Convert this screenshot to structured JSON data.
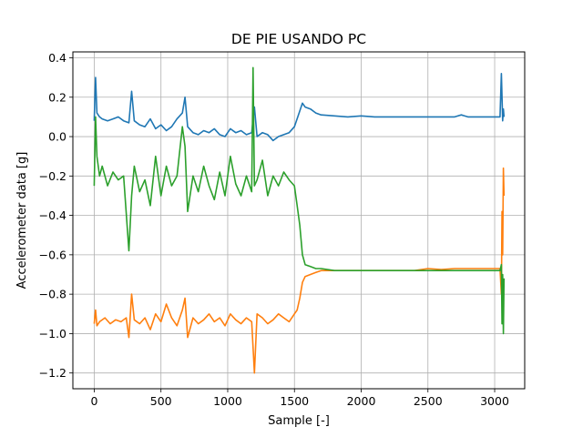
{
  "chart_data": {
    "type": "line",
    "title": "DE PIE USANDO PC",
    "xlabel": "Sample [-]",
    "ylabel": "Accelerometer data [g]",
    "xlim": [
      -160,
      3225
    ],
    "ylim": [
      -1.28,
      0.43
    ],
    "xticks": [
      0,
      500,
      1000,
      1500,
      2000,
      2500,
      3000
    ],
    "yticks": [
      -1.2,
      -1.0,
      -0.8,
      -0.6,
      -0.4,
      -0.2,
      0.0,
      0.2,
      0.4
    ],
    "grid": true,
    "legend": "none",
    "series": [
      {
        "color": "#1f77b4",
        "x": [
          0,
          10,
          20,
          40,
          60,
          100,
          140,
          180,
          220,
          260,
          280,
          300,
          340,
          380,
          420,
          460,
          500,
          540,
          580,
          620,
          660,
          680,
          700,
          740,
          780,
          820,
          860,
          900,
          940,
          980,
          1020,
          1060,
          1100,
          1140,
          1180,
          1200,
          1220,
          1260,
          1300,
          1340,
          1380,
          1420,
          1460,
          1500,
          1540,
          1560,
          1580,
          1620,
          1660,
          1700,
          1800,
          1900,
          2000,
          2100,
          2200,
          2300,
          2400,
          2500,
          2600,
          2700,
          2750,
          2800,
          2900,
          3000,
          3040,
          3050,
          3060,
          3065,
          3070
        ],
        "y": [
          0.08,
          0.3,
          0.12,
          0.1,
          0.09,
          0.08,
          0.09,
          0.1,
          0.08,
          0.07,
          0.23,
          0.08,
          0.06,
          0.05,
          0.09,
          0.04,
          0.06,
          0.03,
          0.05,
          0.09,
          0.12,
          0.2,
          0.05,
          0.02,
          0.01,
          0.03,
          0.02,
          0.04,
          0.01,
          0.0,
          0.04,
          0.02,
          0.03,
          0.01,
          0.02,
          0.15,
          0.0,
          0.02,
          0.01,
          -0.02,
          0.0,
          0.01,
          0.02,
          0.05,
          0.13,
          0.17,
          0.15,
          0.14,
          0.12,
          0.11,
          0.105,
          0.1,
          0.105,
          0.1,
          0.1,
          0.1,
          0.1,
          0.1,
          0.1,
          0.1,
          0.11,
          0.1,
          0.1,
          0.1,
          0.1,
          0.32,
          0.08,
          0.14,
          0.1
        ]
      },
      {
        "color": "#ff7f0e",
        "x": [
          0,
          10,
          20,
          40,
          80,
          120,
          160,
          200,
          240,
          260,
          280,
          300,
          340,
          380,
          420,
          460,
          500,
          540,
          580,
          620,
          660,
          680,
          700,
          740,
          780,
          820,
          860,
          900,
          940,
          980,
          1020,
          1060,
          1100,
          1140,
          1180,
          1200,
          1220,
          1260,
          1300,
          1340,
          1380,
          1420,
          1460,
          1500,
          1520,
          1540,
          1560,
          1580,
          1620,
          1660,
          1700,
          1800,
          1900,
          2000,
          2100,
          2200,
          2300,
          2400,
          2500,
          2600,
          2700,
          2800,
          2900,
          3000,
          3040,
          3050,
          3055,
          3060,
          3065,
          3070
        ],
        "y": [
          -0.95,
          -0.88,
          -0.96,
          -0.94,
          -0.92,
          -0.95,
          -0.93,
          -0.94,
          -0.92,
          -1.02,
          -0.8,
          -0.93,
          -0.95,
          -0.92,
          -0.98,
          -0.9,
          -0.94,
          -0.85,
          -0.92,
          -0.96,
          -0.88,
          -0.82,
          -1.02,
          -0.92,
          -0.95,
          -0.93,
          -0.9,
          -0.94,
          -0.92,
          -0.96,
          -0.9,
          -0.93,
          -0.95,
          -0.92,
          -0.94,
          -1.2,
          -0.9,
          -0.92,
          -0.95,
          -0.93,
          -0.9,
          -0.92,
          -0.94,
          -0.9,
          -0.88,
          -0.82,
          -0.74,
          -0.71,
          -0.7,
          -0.69,
          -0.68,
          -0.68,
          -0.68,
          -0.68,
          -0.68,
          -0.68,
          -0.68,
          -0.68,
          -0.67,
          -0.675,
          -0.67,
          -0.67,
          -0.67,
          -0.67,
          -0.67,
          -0.8,
          -0.38,
          -0.6,
          -0.16,
          -0.3
        ]
      },
      {
        "color": "#2ca02c",
        "x": [
          0,
          10,
          20,
          40,
          60,
          100,
          140,
          180,
          220,
          260,
          280,
          300,
          340,
          380,
          420,
          460,
          500,
          540,
          580,
          620,
          660,
          680,
          700,
          740,
          780,
          820,
          860,
          900,
          940,
          980,
          1020,
          1060,
          1100,
          1140,
          1180,
          1190,
          1200,
          1220,
          1260,
          1300,
          1340,
          1380,
          1420,
          1460,
          1500,
          1520,
          1540,
          1560,
          1580,
          1620,
          1660,
          1700,
          1800,
          1900,
          2000,
          2100,
          2200,
          2300,
          2400,
          2500,
          2600,
          2700,
          2800,
          2900,
          3000,
          3040,
          3050,
          3055,
          3060,
          3065,
          3070
        ],
        "y": [
          -0.25,
          0.1,
          -0.1,
          -0.2,
          -0.15,
          -0.25,
          -0.18,
          -0.22,
          -0.2,
          -0.58,
          -0.3,
          -0.15,
          -0.28,
          -0.22,
          -0.35,
          -0.1,
          -0.3,
          -0.15,
          -0.25,
          -0.2,
          0.05,
          -0.05,
          -0.38,
          -0.2,
          -0.28,
          -0.15,
          -0.25,
          -0.32,
          -0.18,
          -0.3,
          -0.1,
          -0.24,
          -0.3,
          -0.2,
          -0.28,
          0.35,
          -0.25,
          -0.22,
          -0.12,
          -0.3,
          -0.2,
          -0.25,
          -0.18,
          -0.22,
          -0.25,
          -0.35,
          -0.45,
          -0.6,
          -0.65,
          -0.66,
          -0.67,
          -0.67,
          -0.68,
          -0.68,
          -0.68,
          -0.68,
          -0.68,
          -0.68,
          -0.68,
          -0.68,
          -0.68,
          -0.68,
          -0.68,
          -0.68,
          -0.68,
          -0.68,
          -0.65,
          -0.95,
          -0.7,
          -1.0,
          -0.72
        ]
      }
    ]
  }
}
